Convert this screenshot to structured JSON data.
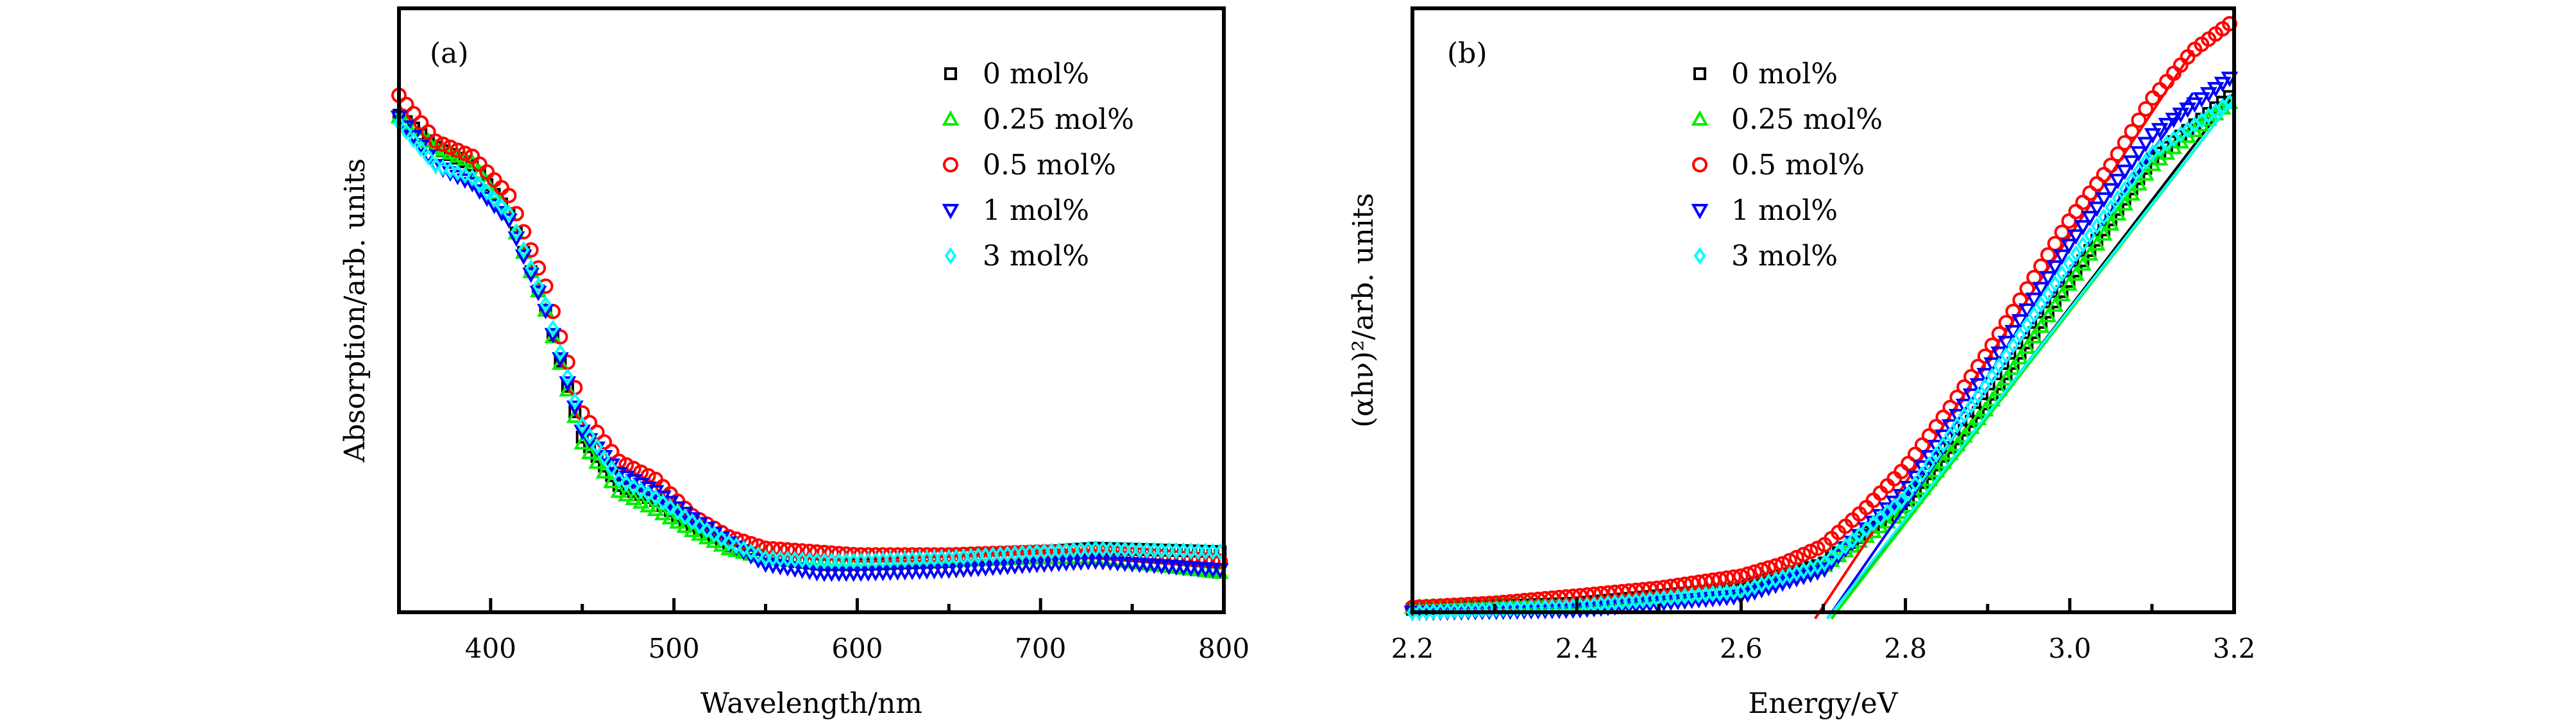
{
  "chart_data": [
    {
      "type": "scatter",
      "panel_label": "(a)",
      "xlabel": "Wavelength/nm",
      "ylabel": "Absorption/arb. units",
      "xlim": [
        350,
        800
      ],
      "ylim": [
        0,
        1
      ],
      "xticks": [
        400,
        500,
        600,
        700,
        800
      ],
      "xtick_labels": [
        "400",
        "500",
        "600",
        "700",
        "800"
      ],
      "y_ticks_shown": false,
      "grid": false,
      "legend_position": "top-right",
      "series": [
        {
          "name": "0 mol%",
          "marker": "square",
          "color": "#000000",
          "x": [
            350,
            370,
            390,
            410,
            430,
            450,
            470,
            490,
            510,
            530,
            550,
            580,
            600,
            650,
            700,
            730,
            800
          ],
          "y": [
            0.823,
            0.77,
            0.74,
            0.66,
            0.5,
            0.29,
            0.21,
            0.185,
            0.144,
            0.11,
            0.09,
            0.079,
            0.079,
            0.084,
            0.1,
            0.106,
            0.1
          ]
        },
        {
          "name": "0.25 mol%",
          "marker": "triangle-up",
          "color": "#00ee00",
          "x": [
            350,
            370,
            390,
            410,
            430,
            450,
            470,
            490,
            510,
            530,
            550,
            600,
            650,
            700,
            730,
            800
          ],
          "y": [
            0.82,
            0.77,
            0.745,
            0.66,
            0.5,
            0.28,
            0.2,
            0.17,
            0.135,
            0.105,
            0.09,
            0.085,
            0.085,
            0.09,
            0.09,
            0.065
          ]
        },
        {
          "name": "0.5 mol%",
          "marker": "circle",
          "color": "#ff0000",
          "x": [
            350,
            370,
            390,
            410,
            430,
            450,
            470,
            490,
            510,
            530,
            550,
            600,
            650,
            700,
            730,
            800
          ],
          "y": [
            0.856,
            0.78,
            0.755,
            0.69,
            0.54,
            0.33,
            0.25,
            0.22,
            0.16,
            0.125,
            0.106,
            0.095,
            0.095,
            0.1,
            0.1,
            0.084
          ]
        },
        {
          "name": "1 mol%",
          "marker": "triangle-down",
          "color": "#0000ff",
          "x": [
            350,
            370,
            390,
            410,
            430,
            450,
            470,
            490,
            510,
            530,
            550,
            580,
            600,
            650,
            700,
            730,
            800
          ],
          "y": [
            0.82,
            0.74,
            0.71,
            0.65,
            0.5,
            0.3,
            0.23,
            0.2,
            0.155,
            0.115,
            0.08,
            0.065,
            0.065,
            0.07,
            0.08,
            0.085,
            0.07
          ]
        },
        {
          "name": "3 mol%",
          "marker": "diamond",
          "color": "#00ffff",
          "x": [
            350,
            370,
            390,
            410,
            430,
            450,
            470,
            490,
            510,
            530,
            550,
            580,
            600,
            650,
            700,
            730,
            800
          ],
          "y": [
            0.81,
            0.74,
            0.72,
            0.66,
            0.51,
            0.31,
            0.22,
            0.19,
            0.15,
            0.115,
            0.09,
            0.085,
            0.085,
            0.09,
            0.1,
            0.105,
            0.1
          ]
        }
      ]
    },
    {
      "type": "scatter",
      "panel_label": "(b)",
      "xlabel": "Energy/eV",
      "ylabel": "(αhν)²/arb. units",
      "xlim": [
        2.2,
        3.2
      ],
      "ylim": [
        0,
        1
      ],
      "xticks": [
        2.2,
        2.4,
        2.6,
        2.8,
        3.0,
        3.2
      ],
      "xtick_labels": [
        "2.2",
        "2.4",
        "2.6",
        "2.8",
        "3.0",
        "3.2"
      ],
      "y_ticks_shown": false,
      "grid": false,
      "legend_position": "top-center",
      "series": [
        {
          "name": "0 mol%",
          "marker": "square",
          "color": "#000000",
          "x": [
            2.2,
            2.4,
            2.6,
            2.7,
            2.8,
            2.9,
            3.0,
            3.1,
            3.2
          ],
          "y": [
            0.005,
            0.015,
            0.04,
            0.08,
            0.18,
            0.35,
            0.55,
            0.75,
            0.86
          ],
          "fit_line": [
            [
              2.71,
              0
            ],
            [
              3.2,
              0.86
            ]
          ]
        },
        {
          "name": "0.25 mol%",
          "marker": "triangle-up",
          "color": "#00ee00",
          "x": [
            2.2,
            2.4,
            2.6,
            2.7,
            2.8,
            2.9,
            3.0,
            3.1,
            3.2
          ],
          "y": [
            0.008,
            0.015,
            0.035,
            0.076,
            0.17,
            0.34,
            0.545,
            0.74,
            0.85
          ],
          "fit_line": [
            [
              2.71,
              0
            ],
            [
              3.2,
              0.85
            ]
          ]
        },
        {
          "name": "0.5 mol%",
          "marker": "circle",
          "color": "#ff0000",
          "x": [
            2.2,
            2.3,
            2.4,
            2.5,
            2.6,
            2.65,
            2.7,
            2.75,
            2.8,
            2.85,
            2.9,
            2.95,
            3.0,
            3.05,
            3.1,
            3.15,
            3.2
          ],
          "y": [
            0.008,
            0.015,
            0.027,
            0.04,
            0.06,
            0.08,
            0.11,
            0.17,
            0.24,
            0.33,
            0.43,
            0.54,
            0.65,
            0.74,
            0.85,
            0.93,
            0.98
          ],
          "fit_line": [
            [
              2.69,
              0
            ],
            [
              3.15,
              0.93
            ]
          ]
        },
        {
          "name": "1 mol%",
          "marker": "triangle-down",
          "color": "#0000ff",
          "x": [
            2.2,
            2.4,
            2.6,
            2.7,
            2.8,
            2.9,
            3.0,
            3.1,
            3.2
          ],
          "y": [
            0.0,
            0.004,
            0.027,
            0.07,
            0.2,
            0.4,
            0.61,
            0.79,
            0.89
          ],
          "fit_line": [
            [
              2.705,
              0
            ],
            [
              3.15,
              0.86
            ]
          ]
        },
        {
          "name": "3 mol%",
          "marker": "diamond",
          "color": "#00ffff",
          "x": [
            2.2,
            2.4,
            2.6,
            2.7,
            2.8,
            2.9,
            3.0,
            3.1,
            3.2
          ],
          "y": [
            0.0,
            0.01,
            0.035,
            0.08,
            0.19,
            0.38,
            0.58,
            0.76,
            0.85
          ],
          "fit_line": [
            [
              2.705,
              0
            ],
            [
              3.2,
              0.85
            ]
          ]
        }
      ]
    }
  ]
}
